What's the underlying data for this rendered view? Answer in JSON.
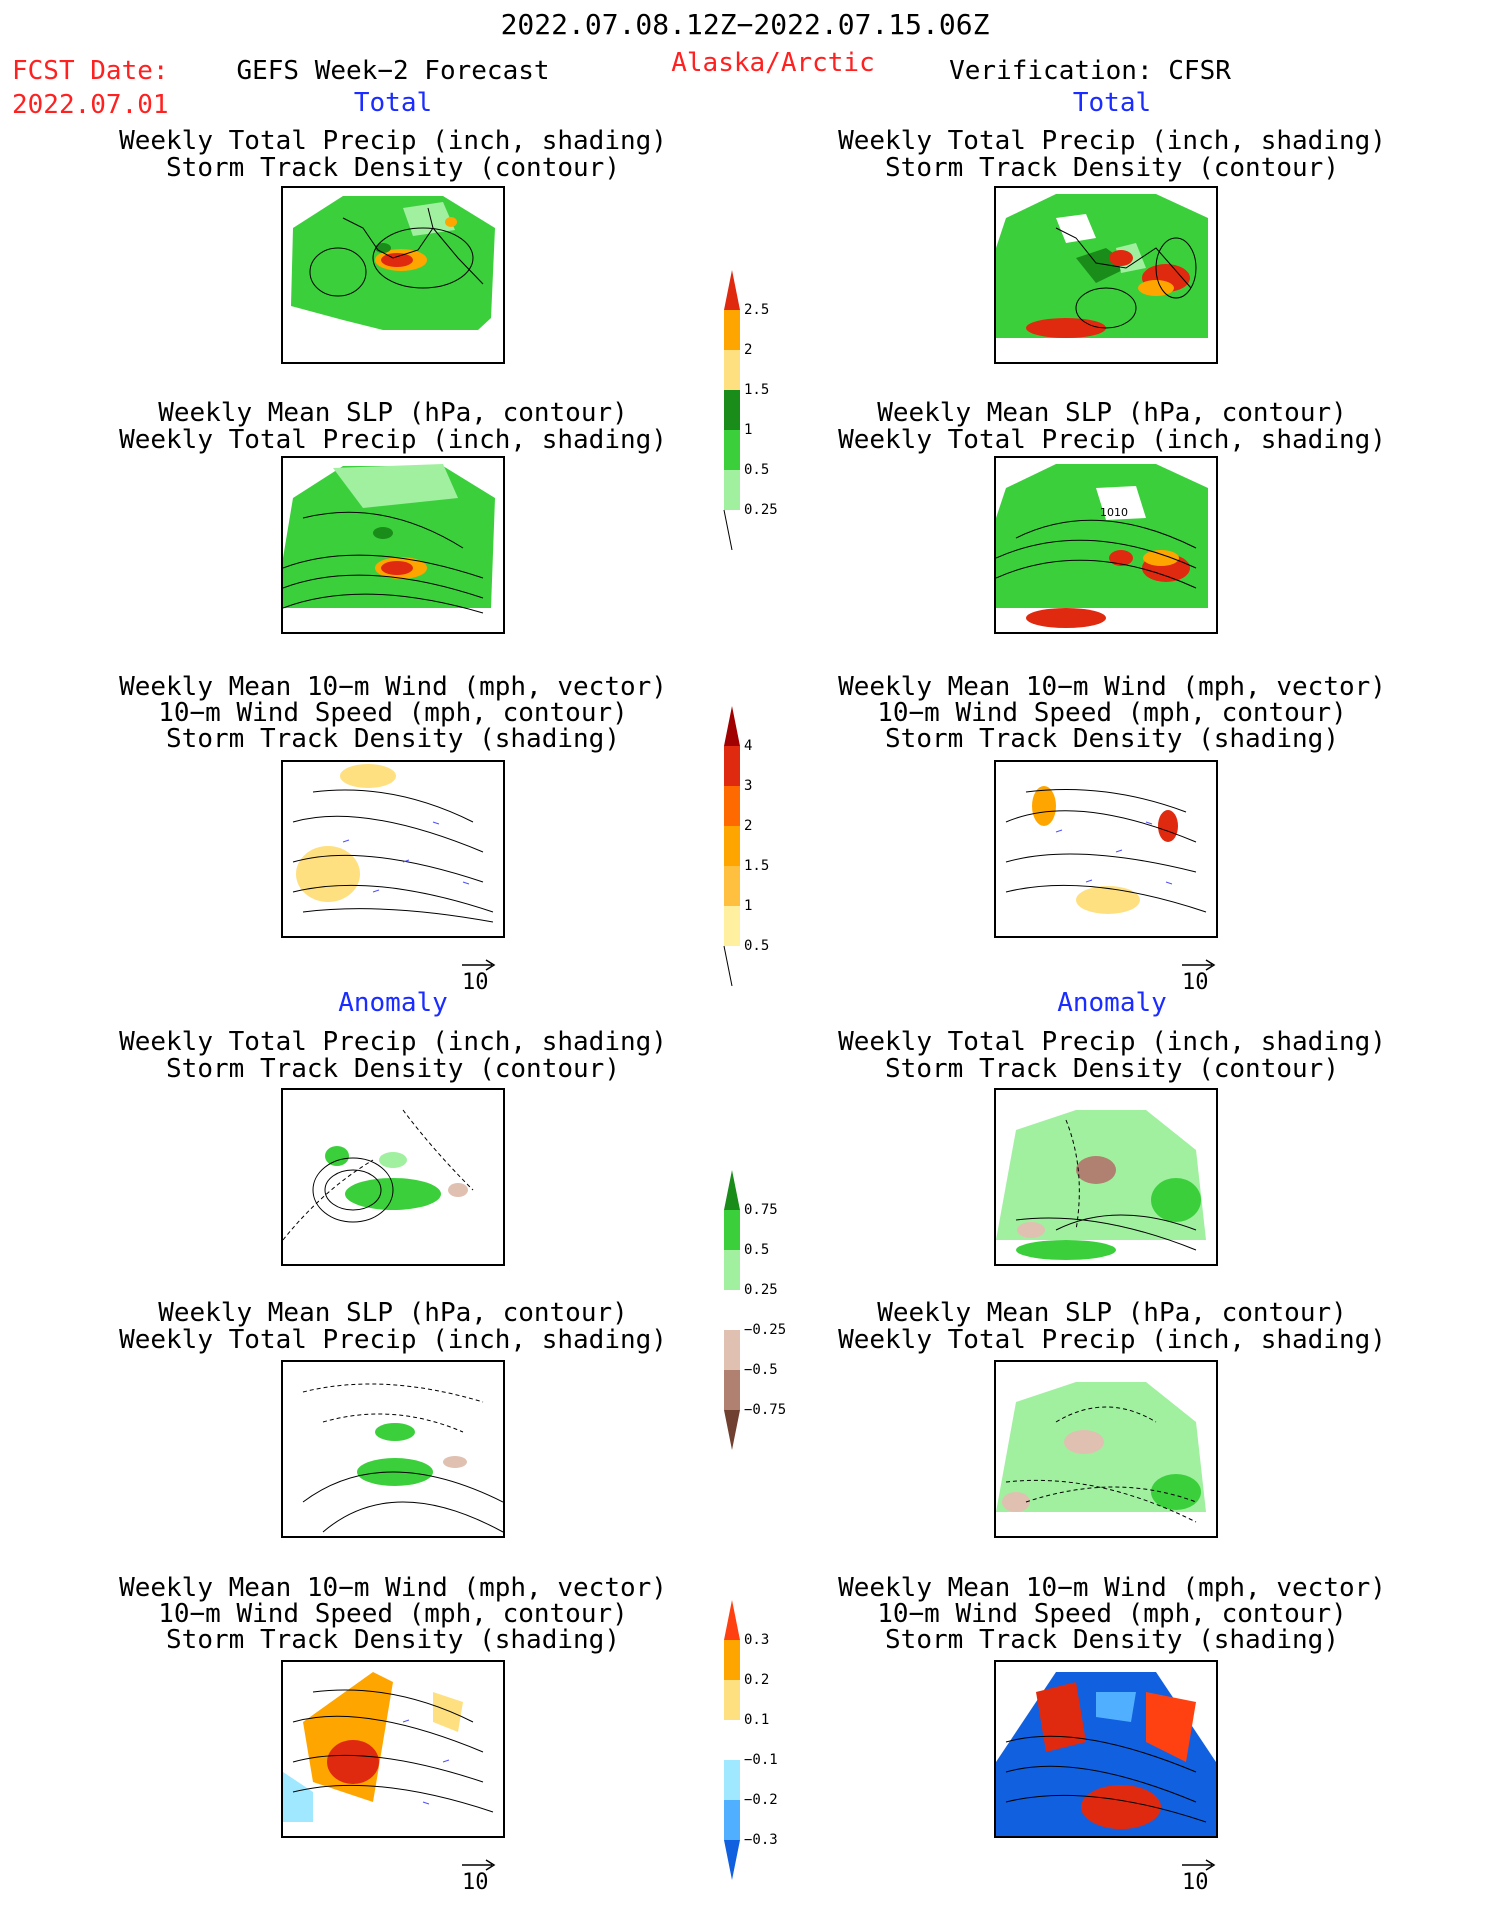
{
  "header": {
    "period": "2022.07.08.12Z−2022.07.15.06Z",
    "fcst_label": "FCST Date:",
    "fcst_date": "2022.07.01",
    "left_title": "GEFS Week−2 Forecast",
    "region": "Alaska/Arctic",
    "right_title": "Verification: CFSR"
  },
  "sections": {
    "total": "Total",
    "anomaly": "Anomaly"
  },
  "panels": {
    "precip_storm": [
      "Weekly Total Precip (inch, shading)",
      "Storm Track Density (contour)"
    ],
    "slp_precip": [
      "Weekly Mean SLP (hPa, contour)",
      "Weekly Total Precip (inch, shading)"
    ],
    "wind_storm": [
      "Weekly Mean 10−m Wind (mph, vector)",
      "10−m Wind Speed (mph, contour)",
      "Storm Track Density (shading)"
    ],
    "contour_label_1010": "1010",
    "vector_ref": "10"
  },
  "colorbars": {
    "precip_total": {
      "labels": [
        "2.5",
        "2",
        "1.5",
        "1",
        "0.5",
        "0.25"
      ],
      "colors": [
        "#e02a10",
        "#ffa500",
        "#ffe080",
        "#1a8c1a",
        "#3ccf3c",
        "#a0f0a0"
      ]
    },
    "storm_total": {
      "labels": [
        "4",
        "3",
        "2",
        "1.5",
        "1",
        "0.5"
      ],
      "colors": [
        "#a00000",
        "#e02a10",
        "#ff6a00",
        "#ffa500",
        "#ffc040",
        "#fff0a0"
      ]
    },
    "precip_anom": {
      "labels": [
        "0.75",
        "0.5",
        "0.25",
        "−0.25",
        "−0.5",
        "−0.75"
      ],
      "colors": [
        "#1a8c1a",
        "#3ccf3c",
        "#a0f0a0",
        "#ffffff",
        "#e0c0b0",
        "#b08070",
        "#704030"
      ]
    },
    "storm_anom": {
      "labels": [
        "0.3",
        "0.2",
        "0.1",
        "−0.1",
        "−0.2",
        "−0.3"
      ],
      "colors": [
        "#ff4010",
        "#ffa500",
        "#ffe080",
        "#ffffff",
        "#a0e8ff",
        "#50b0ff",
        "#1060e0"
      ]
    }
  }
}
